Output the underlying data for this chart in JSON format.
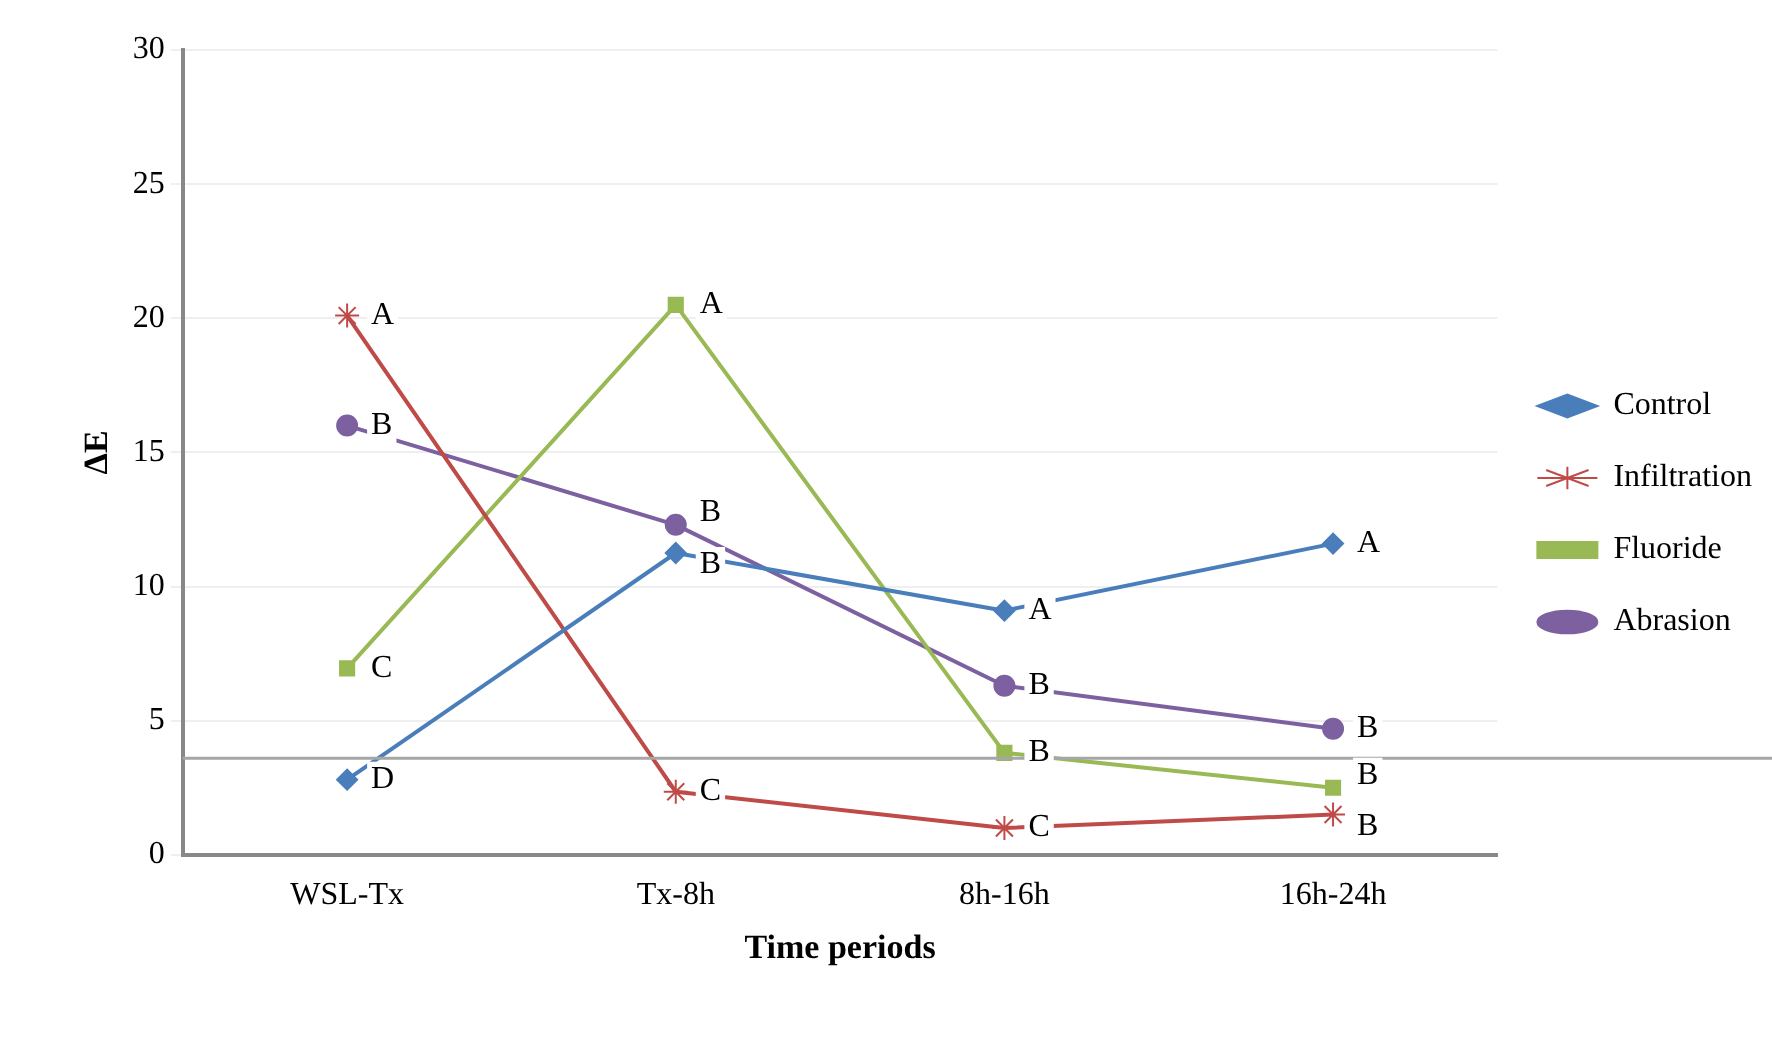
{
  "chart_data": {
    "type": "line",
    "xlabel": "Time periods",
    "ylabel": "ΔE",
    "categories": [
      "WSL-Tx",
      "Tx-8h",
      "8h-16h",
      "16h-24h"
    ],
    "series": [
      {
        "name": "Control",
        "color": "#4a7ebb",
        "marker": "diamond",
        "values": [
          2.8,
          11.25,
          9.1,
          11.6
        ]
      },
      {
        "name": "Infiltration",
        "color": "#be4b48",
        "marker": "cross",
        "values": [
          20.1,
          2.35,
          1.0,
          1.5
        ]
      },
      {
        "name": "Fluoride",
        "color": "#98b954",
        "marker": "square",
        "values": [
          6.95,
          20.5,
          3.8,
          2.5
        ]
      },
      {
        "name": "Abrasion",
        "color": "#7d60a0",
        "marker": "circle",
        "values": [
          16.0,
          12.3,
          6.3,
          4.7
        ]
      }
    ],
    "ylim": [
      0,
      30
    ],
    "yticks": [
      0,
      5,
      10,
      15,
      20,
      25,
      30
    ],
    "grid": "y",
    "legend": "right",
    "ref_lines": [
      {
        "axis": "y",
        "value": 3.6,
        "color": "#a6a6a6"
      }
    ],
    "annotations": [
      {
        "text": "A",
        "x": "WSL-Tx",
        "y": 20.1
      },
      {
        "text": "B",
        "x": "WSL-Tx",
        "y": 16.0
      },
      {
        "text": "C",
        "x": "WSL-Tx",
        "y": 6.95
      },
      {
        "text": "D",
        "x": "WSL-Tx",
        "y": 2.8
      },
      {
        "text": "A",
        "x": "Tx-8h",
        "y": 20.5
      },
      {
        "text": "B",
        "x": "Tx-8h",
        "y": 12.3
      },
      {
        "text": "B",
        "x": "Tx-8h",
        "y": 11.25
      },
      {
        "text": "C",
        "x": "Tx-8h",
        "y": 2.35
      },
      {
        "text": "A",
        "x": "8h-16h",
        "y": 9.1
      },
      {
        "text": "B",
        "x": "8h-16h",
        "y": 6.3
      },
      {
        "text": "B",
        "x": "8h-16h",
        "y": 3.8
      },
      {
        "text": "C",
        "x": "8h-16h",
        "y": 1.0
      },
      {
        "text": "A",
        "x": "16h-24h",
        "y": 11.6
      },
      {
        "text": "B",
        "x": "16h-24h",
        "y": 4.7
      },
      {
        "text": "B",
        "x": "16h-24h",
        "y": 2.5
      },
      {
        "text": "B",
        "x": "16h-24h",
        "y": 1.5
      }
    ]
  }
}
